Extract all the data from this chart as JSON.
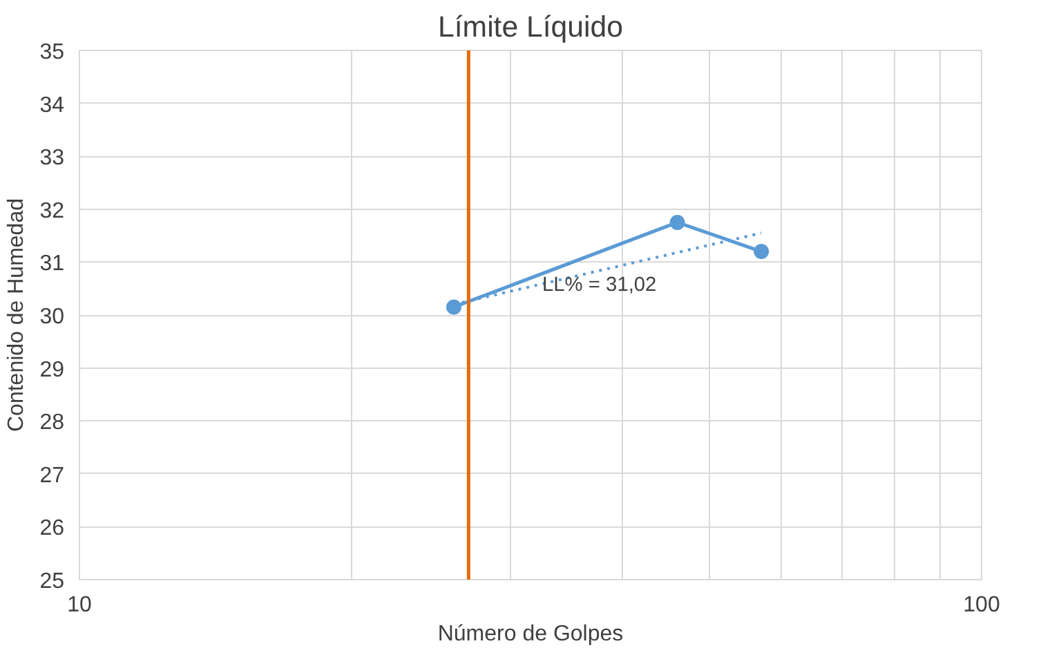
{
  "chart_data": {
    "type": "line",
    "title": "Límite Líquido",
    "xlabel": "Número de Golpes",
    "ylabel": "Contenido de Humedad",
    "log": "x",
    "grid": true,
    "marker": "circle",
    "line_style": "solid",
    "xlim": [
      10,
      100
    ],
    "xticks": [
      10,
      {
        "value": 20,
        "label": null
      },
      {
        "value": 30,
        "label": null
      },
      {
        "value": 40,
        "label": null
      },
      {
        "value": 50,
        "label": null
      },
      {
        "value": 60,
        "label": null
      },
      {
        "value": 70,
        "label": null
      },
      {
        "value": 80,
        "label": null
      },
      {
        "value": 90,
        "label": null
      },
      100
    ],
    "ylim": [
      25,
      35
    ],
    "yticks": [
      25,
      26,
      27,
      28,
      29,
      30,
      31,
      32,
      33,
      34,
      35
    ],
    "series": [
      {
        "color": "#5b9bd5",
        "x": [
          26,
          46,
          57
        ],
        "values": [
          30.15,
          31.75,
          31.2
        ]
      },
      {
        "color": "#5b9bd5",
        "x": [
          26,
          57
        ],
        "values": [
          30.2,
          31.55
        ],
        "marker": "none",
        "line_style": "dotted"
      }
    ],
    "ref_lines": [
      {
        "axis": "x",
        "value": 27,
        "color": "#e36c0a"
      }
    ],
    "annotations": [
      "LL% = 31,02"
    ]
  }
}
